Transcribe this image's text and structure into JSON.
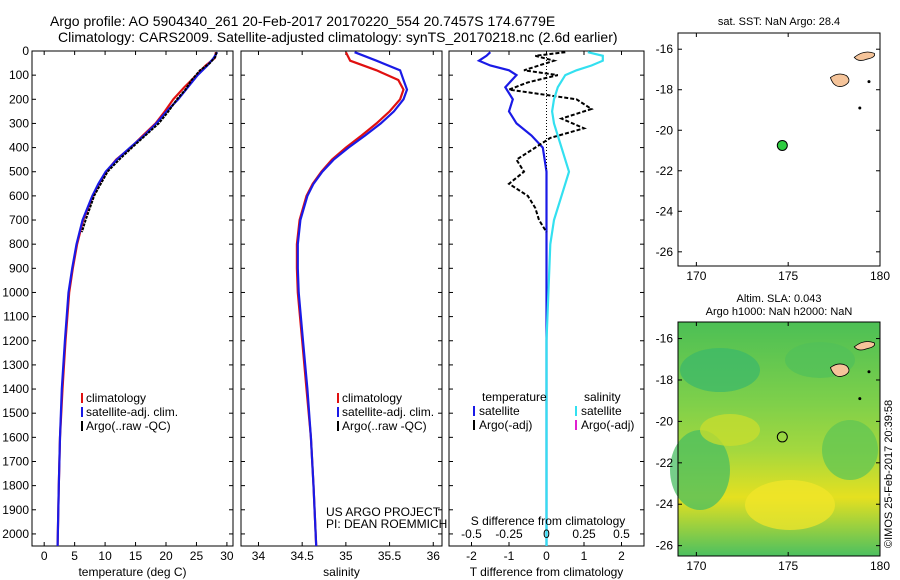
{
  "header": {
    "title_line1": "Argo profile: AO 5904340_261 20-Feb-2017 20170220_554 20.7457S 174.6779E",
    "title_line2": "Climatology: CARS2009. Satellite-adjusted climatology: synTS_20170218.nc (2.6d earlier)"
  },
  "credit": "©IMOS 25-Feb-2017 20:39:58",
  "colors": {
    "climatology": "#e01010",
    "satellite": "#1a1ae6",
    "argo": "#000000",
    "salinity_satellite": "#33e0f0",
    "salinity_argo": "#e020d0",
    "land": "#f5c49a",
    "float_marker": "#2ecc40"
  },
  "chart_data": [
    {
      "type": "line",
      "xlabel": "temperature (deg C)",
      "ylabel": "",
      "xlim": [
        -2,
        31
      ],
      "ylim": [
        2050,
        0
      ],
      "xticks": [
        0,
        5,
        10,
        15,
        20,
        25,
        30
      ],
      "yticks": [
        0,
        100,
        200,
        300,
        400,
        500,
        600,
        700,
        800,
        900,
        1000,
        1100,
        1200,
        1300,
        1400,
        1500,
        1600,
        1700,
        1800,
        1900,
        2000
      ],
      "legend": [
        "climatology",
        "satellite-adj. clim.",
        "Argo(..raw -QC)"
      ],
      "series": [
        {
          "name": "climatology",
          "color_key": "climatology",
          "depth": [
            5,
            30,
            60,
            100,
            150,
            200,
            250,
            300,
            350,
            400,
            450,
            500,
            550,
            600,
            700,
            800,
            900,
            1000,
            1200,
            1400,
            1600,
            1800,
            2050
          ],
          "x": [
            28.2,
            28.0,
            26.5,
            25.0,
            23.0,
            21.2,
            19.8,
            18.3,
            16.2,
            14.2,
            11.8,
            10.2,
            9.0,
            8.0,
            6.4,
            5.4,
            4.7,
            4.1,
            3.5,
            3.0,
            2.6,
            2.4,
            2.2
          ]
        },
        {
          "name": "satellite-adj. clim.",
          "color_key": "satellite",
          "depth": [
            5,
            30,
            60,
            100,
            150,
            200,
            250,
            300,
            350,
            400,
            450,
            500,
            550,
            600,
            700,
            800,
            900,
            1000,
            1200,
            1400,
            1600,
            1800,
            2050
          ],
          "x": [
            28.4,
            27.8,
            26.8,
            25.2,
            23.6,
            22.0,
            20.1,
            18.4,
            16.4,
            14.1,
            11.9,
            10.1,
            8.9,
            7.9,
            6.3,
            5.3,
            4.6,
            4.0,
            3.4,
            2.9,
            2.6,
            2.4,
            2.2
          ]
        },
        {
          "name": "Argo(..raw -QC)",
          "color_key": "argo",
          "depth": [
            5,
            25,
            50,
            80,
            120,
            160,
            200,
            250,
            300,
            350,
            400,
            450,
            500,
            550,
            600,
            650,
            700,
            750
          ],
          "x": [
            28.3,
            28.1,
            27.2,
            25.6,
            24.2,
            23.2,
            21.8,
            20.4,
            18.8,
            16.6,
            14.4,
            12.3,
            10.4,
            9.3,
            8.2,
            7.5,
            6.8,
            6.2
          ]
        }
      ]
    },
    {
      "type": "line",
      "xlabel": "salinity",
      "ylabel": "",
      "xlim": [
        33.8,
        36.1
      ],
      "ylim": [
        2050,
        0
      ],
      "xticks": [
        34,
        34.5,
        35,
        35.5,
        36
      ],
      "legend": [
        "climatology",
        "satellite-adj. clim.",
        "Argo(..raw -QC)"
      ],
      "series": [
        {
          "name": "climatology",
          "color_key": "climatology",
          "depth": [
            5,
            40,
            80,
            120,
            160,
            200,
            250,
            300,
            350,
            400,
            450,
            500,
            550,
            600,
            700,
            800,
            900,
            1000,
            1200,
            1400,
            1600,
            1800,
            2050
          ],
          "x": [
            35.0,
            35.05,
            35.35,
            35.6,
            35.66,
            35.62,
            35.5,
            35.35,
            35.18,
            35.0,
            34.84,
            34.72,
            34.62,
            34.55,
            34.47,
            34.44,
            34.44,
            34.45,
            34.5,
            34.55,
            34.6,
            34.63,
            34.66
          ]
        },
        {
          "name": "satellite-adj. clim.",
          "color_key": "satellite",
          "depth": [
            5,
            40,
            80,
            120,
            160,
            200,
            250,
            300,
            350,
            400,
            450,
            500,
            550,
            600,
            700,
            800,
            900,
            1000,
            1200,
            1400,
            1600,
            1800,
            2050
          ],
          "x": [
            35.1,
            35.35,
            35.62,
            35.66,
            35.7,
            35.66,
            35.55,
            35.4,
            35.22,
            35.03,
            34.86,
            34.73,
            34.63,
            34.56,
            34.48,
            34.45,
            34.45,
            34.46,
            34.51,
            34.56,
            34.6,
            34.63,
            34.66
          ]
        }
      ],
      "annotations": [
        "US ARGO PROJECT",
        "PI: DEAN ROEMMICH"
      ]
    },
    {
      "type": "line",
      "xlabel": "T difference from climatology",
      "xlabel_top": "S difference from climatology",
      "xlim": [
        -2.6,
        2.6
      ],
      "ylim": [
        2050,
        0
      ],
      "xticks": [
        -2,
        -1,
        0,
        1,
        2
      ],
      "xtick_labels": [
        "-2",
        "-1",
        "0",
        "1",
        "2"
      ],
      "top_ticks": [
        -2,
        -1,
        0,
        1,
        2
      ],
      "top_tick_labels": [
        "-0.5",
        "-0.25",
        "0",
        "0.25",
        "0.5"
      ],
      "legend_groups": [
        {
          "heading": "temperature",
          "entries": [
            "satellite",
            "Argo(-adj)"
          ]
        },
        {
          "heading": "salinity",
          "entries": [
            "satellite",
            "Argo(-adj)"
          ]
        }
      ],
      "series": [
        {
          "name": "temperature satellite",
          "color_key": "satellite",
          "depth": [
            5,
            20,
            40,
            60,
            80,
            100,
            150,
            200,
            250,
            300,
            350,
            400,
            500,
            600,
            700,
            800,
            1000,
            1200,
            1500,
            2050
          ],
          "x": [
            -1.5,
            -1.6,
            -1.8,
            -1.5,
            -1.0,
            -0.8,
            -1.1,
            -0.9,
            -1.0,
            -0.8,
            -0.4,
            -0.1,
            0.0,
            0.0,
            0.0,
            0.0,
            0.0,
            0.0,
            0.0,
            0.0
          ]
        },
        {
          "name": "temperature Argo(-adj)",
          "color_key": "argo",
          "depth": [
            5,
            20,
            40,
            60,
            80,
            100,
            130,
            160,
            200,
            240,
            280,
            320,
            360,
            400,
            450,
            500,
            550,
            600,
            650,
            700,
            750
          ],
          "x": [
            0.5,
            -0.3,
            0.2,
            -0.2,
            -0.6,
            0.3,
            -0.5,
            -1.0,
            0.8,
            1.2,
            0.4,
            1.0,
            0.1,
            -0.3,
            -0.8,
            -0.6,
            -1.0,
            -0.5,
            -0.3,
            -0.2,
            0.0
          ]
        },
        {
          "name": "salinity satellite",
          "color_key": "salinity_satellite",
          "depth": [
            5,
            20,
            40,
            60,
            80,
            100,
            150,
            200,
            250,
            300,
            400,
            500,
            600,
            700,
            800,
            1000,
            1200,
            1500,
            2050
          ],
          "x": [
            1.1,
            1.5,
            1.5,
            1.2,
            0.8,
            0.5,
            0.3,
            0.2,
            0.15,
            0.2,
            0.4,
            0.6,
            0.4,
            0.2,
            0.1,
            0.05,
            0.0,
            0.0,
            0.0
          ]
        }
      ]
    }
  ],
  "map_sst": {
    "title": "sat. SST: NaN Argo: 28.4",
    "xticks": [
      "170",
      "175",
      "180"
    ],
    "yticks": [
      "-16",
      "-18",
      "-20",
      "-22",
      "-24",
      "-26"
    ],
    "lon_range": [
      169,
      180
    ],
    "lat_range": [
      -26.7,
      -15.2
    ],
    "float": {
      "lon": 174.68,
      "lat": -20.75
    }
  },
  "map_sla": {
    "title_line1": "Altim. SLA: 0.043",
    "title_line2": "Argo h1000: NaN h2000: NaN",
    "xticks": [
      "170",
      "175",
      "180"
    ],
    "yticks": [
      "-16",
      "-18",
      "-20",
      "-22",
      "-24",
      "-26"
    ],
    "lon_range": [
      169,
      180
    ],
    "lat_range": [
      -26.5,
      -15.2
    ],
    "float": {
      "lon": 174.68,
      "lat": -20.75
    }
  }
}
